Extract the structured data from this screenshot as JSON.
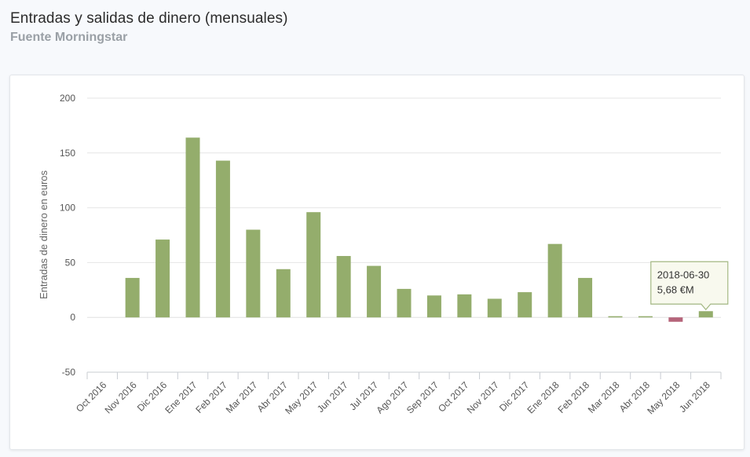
{
  "header": {
    "title": "Entradas y salidas de dinero (mensuales)",
    "subtitle": "Fuente Morningstar"
  },
  "chart_data": {
    "type": "bar",
    "ylabel": "Entradas de dinero en euros",
    "xlabel": "",
    "ylim": [
      -50,
      200
    ],
    "yticks": [
      200,
      150,
      100,
      50,
      0,
      -50
    ],
    "grid": true,
    "categories": [
      "Oct 2016",
      "Nov 2016",
      "Dic 2016",
      "Ene 2017",
      "Feb 2017",
      "Mar 2017",
      "Abr 2017",
      "May 2017",
      "Jun 2017",
      "Jul 2017",
      "Ago 2017",
      "Sep 2017",
      "Oct 2017",
      "Nov 2017",
      "Dic 2017",
      "Ene 2018",
      "Feb 2018",
      "Mar 2018",
      "Abr 2018",
      "May 2018",
      "Jun 2018"
    ],
    "values": [
      0,
      36,
      71,
      164,
      143,
      80,
      44,
      96,
      56,
      47,
      26,
      20,
      21,
      17,
      23,
      67,
      36,
      0.5,
      0.5,
      -4,
      5.68
    ],
    "colors": {
      "positive": "#94ad6c",
      "negative": "#b5647a"
    },
    "tooltip": {
      "date": "2018-06-30",
      "value": "5,68 €M",
      "category_index": 20
    }
  }
}
